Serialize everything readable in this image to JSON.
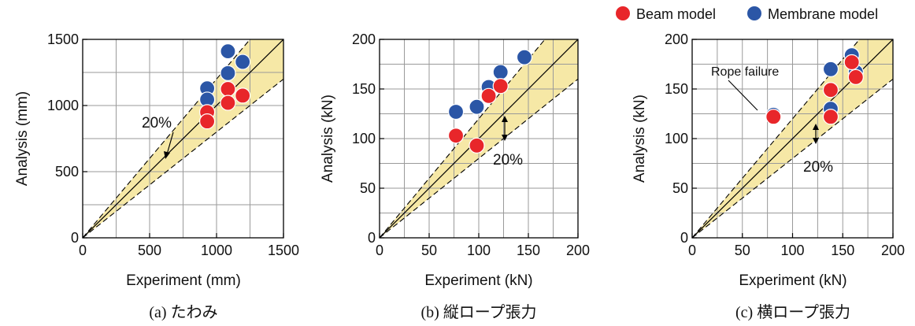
{
  "legend": {
    "position": "top-right",
    "items": [
      {
        "label": "Beam model",
        "color": "#e8262a"
      },
      {
        "label": "Membrane model",
        "color": "#2b56a6"
      }
    ]
  },
  "chart_data": [
    {
      "type": "scatter",
      "caption": "(a) たわみ",
      "xlabel": "Experiment (mm)",
      "ylabel": "Analysis (mm)",
      "xlim": [
        0,
        1500
      ],
      "ylim": [
        0,
        1500
      ],
      "xticks": [
        0,
        500,
        1000,
        1500
      ],
      "yticks": [
        0,
        500,
        1000,
        1500
      ],
      "grid_step": 250,
      "band_percent": 20,
      "band_label": "20%",
      "series": [
        {
          "name": "Membrane model",
          "color": "#2b56a6",
          "points": [
            [
              930,
              1130
            ],
            [
              930,
              1045
            ],
            [
              1085,
              1410
            ],
            [
              1085,
              1245
            ],
            [
              1195,
              1330
            ]
          ]
        },
        {
          "name": "Beam model",
          "color": "#e8262a",
          "points": [
            [
              930,
              950
            ],
            [
              930,
              880
            ],
            [
              1085,
              1125
            ],
            [
              1085,
              1020
            ],
            [
              1195,
              1075
            ]
          ]
        }
      ],
      "annotations": []
    },
    {
      "type": "scatter",
      "caption": "(b) 縦ロープ張力",
      "xlabel": "Experiment (kN)",
      "ylabel": "Analysis (kN)",
      "xlim": [
        0,
        200
      ],
      "ylim": [
        0,
        200
      ],
      "xticks": [
        0,
        50,
        100,
        150,
        200
      ],
      "yticks": [
        0,
        50,
        100,
        150,
        200
      ],
      "grid_step": 25,
      "band_percent": 20,
      "band_label": "20%",
      "series": [
        {
          "name": "Membrane model",
          "color": "#2b56a6",
          "points": [
            [
              77,
              127
            ],
            [
              98,
              132
            ],
            [
              110,
              152
            ],
            [
              122,
              167
            ],
            [
              146,
              182
            ]
          ]
        },
        {
          "name": "Beam model",
          "color": "#e8262a",
          "points": [
            [
              77,
              103
            ],
            [
              98,
              93
            ],
            [
              110,
              143
            ],
            [
              122,
              153
            ]
          ]
        }
      ],
      "annotations": []
    },
    {
      "type": "scatter",
      "caption": "(c) 横ロープ張力",
      "xlabel": "Experiment (kN)",
      "ylabel": "Analysis (kN)",
      "xlim": [
        0,
        200
      ],
      "ylim": [
        0,
        200
      ],
      "xticks": [
        0,
        50,
        100,
        150,
        200
      ],
      "yticks": [
        0,
        50,
        100,
        150,
        200
      ],
      "grid_step": 25,
      "band_percent": 20,
      "band_label": "20%",
      "series": [
        {
          "name": "Membrane model",
          "color": "#2b56a6",
          "points": [
            [
              81,
              124
            ],
            [
              138,
              170
            ],
            [
              138,
              130
            ],
            [
              159,
              184
            ],
            [
              163,
              167
            ]
          ]
        },
        {
          "name": "Beam model",
          "color": "#e8262a",
          "points": [
            [
              81,
              122
            ],
            [
              138,
              149
            ],
            [
              138,
              122
            ],
            [
              159,
              177
            ],
            [
              163,
              162
            ]
          ]
        }
      ],
      "annotations": [
        {
          "text": "Rope failure",
          "target": [
            81,
            123
          ]
        }
      ]
    }
  ]
}
